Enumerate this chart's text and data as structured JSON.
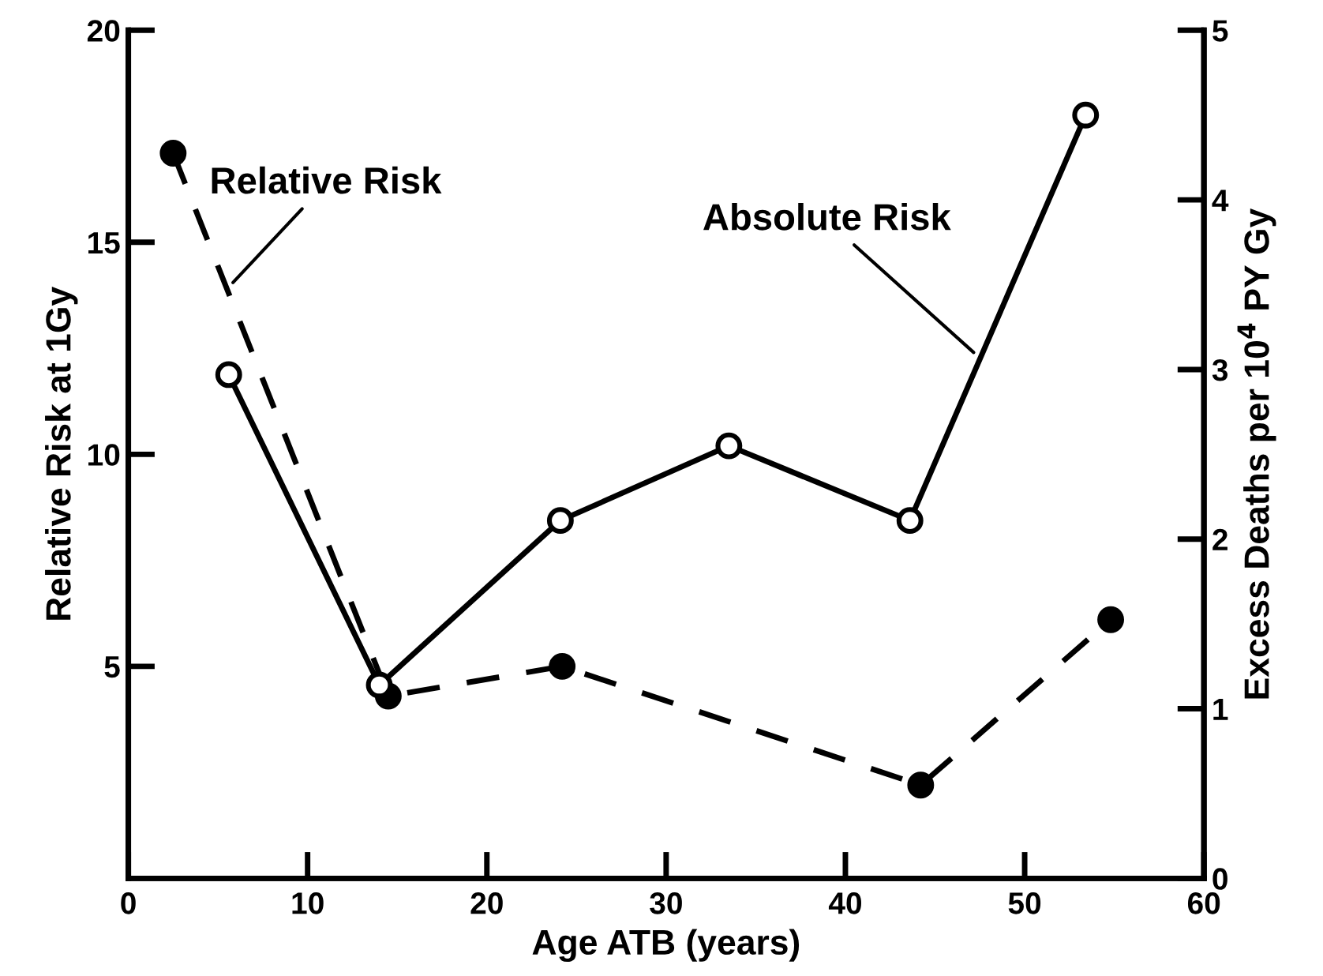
{
  "chart_data": {
    "type": "line",
    "xlabel": "Age ATB (years)",
    "ylabel": "Relative Risk at 1Gy",
    "y2label": "Excess Deaths per 10$^{4}$ PY Gy",
    "series": [
      {
        "name": "Relative Risk",
        "color": "#000000",
        "line_style": "dashed",
        "marker": "circle",
        "x": [
          2.5,
          14.5,
          24.2,
          44.2,
          54.8
        ],
        "values": [
          17.1,
          4.3,
          5.0,
          2.2,
          6.1
        ]
      },
      {
        "name": "Absolute Risk",
        "color": "#000000",
        "line_style": "solid",
        "marker": "circle",
        "axis": "y2",
        "x": [
          5.6,
          14.0,
          24.1,
          33.5,
          43.6,
          53.4
        ],
        "values": [
          2.97,
          1.14,
          2.11,
          2.55,
          2.11,
          4.5
        ]
      }
    ],
    "xlim": [
      0,
      60
    ],
    "xticks": [
      0,
      10,
      20,
      30,
      40,
      50,
      60
    ],
    "ylim": [
      0,
      20
    ],
    "yticks": [
      5,
      10,
      15,
      20
    ],
    "y2lim": [
      0,
      5
    ],
    "y2ticks": [
      0,
      1,
      2,
      3,
      4,
      5
    ],
    "grid": false,
    "legend": false
  }
}
